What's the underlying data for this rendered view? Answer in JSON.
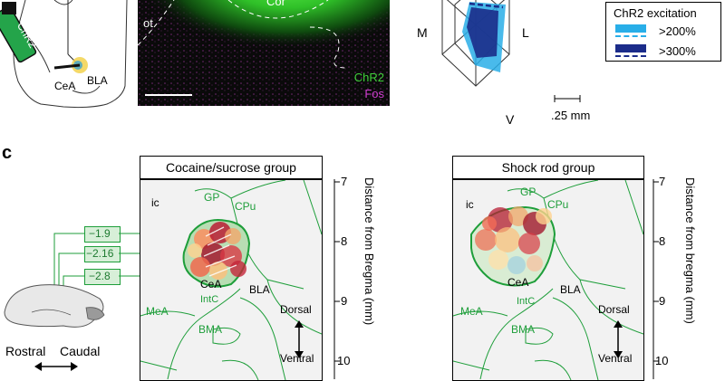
{
  "panel_b": {
    "cor_label": "Cor",
    "ot_label": "ot",
    "chr2_label": "ChR2",
    "fos_label": "Fos"
  },
  "panel_a": {
    "chr2_label": "ChR2",
    "cea_label": "CeA",
    "bla_label": "BLA"
  },
  "panel_polar": {
    "m_label": "M",
    "l_label": "L",
    "v_label": "V",
    "scale_label": ".25 mm",
    "legend_title": "ChR2 excitation",
    "legend_items": [
      {
        "label": ">200%",
        "color": "#29aee8"
      },
      {
        "label": ">300%",
        "color": "#1b2c8a"
      }
    ]
  },
  "panel_c": {
    "panel_letter": "c",
    "bregma_values": [
      "−1.9",
      "−2.16",
      "−2.8"
    ],
    "orientation": {
      "rostral": "Rostral",
      "caudal": "Caudal"
    },
    "maps": [
      {
        "title": "Cocaine/sucrose group",
        "axis_label": "Distance from Bregma (mm)",
        "ticks": [
          "7",
          "8",
          "9",
          "10"
        ],
        "regions": {
          "ic": "ic",
          "gp": "GP",
          "cpu": "CPu",
          "cea": "CeA",
          "bla": "BLA",
          "mea": "MeA",
          "intc": "IntC",
          "bma": "BMA"
        },
        "dorsal": "Dorsal",
        "ventral": "Ventral"
      },
      {
        "title": "Shock rod group",
        "axis_label": "Distance from bregma (mm)",
        "ticks": [
          "7",
          "8",
          "9",
          "10"
        ],
        "regions": {
          "ic": "ic",
          "gp": "GP",
          "cpu": "CPu",
          "cea": "CeA",
          "bla": "BLA",
          "mea": "MeA",
          "intc": "IntC",
          "bma": "BMA"
        },
        "dorsal": "Dorsal",
        "ventral": "Ventral"
      }
    ]
  },
  "colors": {
    "green": "#1e9e3a",
    "chr2_green": "#27c22b",
    "fos_magenta": "#d23fd2"
  }
}
